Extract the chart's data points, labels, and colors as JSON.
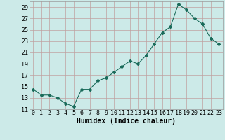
{
  "x": [
    0,
    1,
    2,
    3,
    4,
    5,
    6,
    7,
    8,
    9,
    10,
    11,
    12,
    13,
    14,
    15,
    16,
    17,
    18,
    19,
    20,
    21,
    22,
    23
  ],
  "y": [
    14.5,
    13.5,
    13.5,
    13.0,
    12.0,
    11.5,
    14.5,
    14.5,
    16.0,
    16.5,
    17.5,
    18.5,
    19.5,
    19.0,
    20.5,
    22.5,
    24.5,
    25.5,
    29.5,
    28.5,
    27.0,
    26.0,
    23.5,
    22.5
  ],
  "line_color": "#1a6b5a",
  "marker": "D",
  "marker_size": 2,
  "bg_color": "#cceae8",
  "grid_color": "#c0a0a0",
  "xlabel": "Humidex (Indice chaleur)",
  "ylim": [
    11,
    30
  ],
  "yticks": [
    11,
    13,
    15,
    17,
    19,
    21,
    23,
    25,
    27,
    29
  ],
  "xtick_labels": [
    "0",
    "1",
    "2",
    "3",
    "4",
    "5",
    "6",
    "7",
    "8",
    "9",
    "10",
    "11",
    "12",
    "13",
    "14",
    "15",
    "16",
    "17",
    "18",
    "19",
    "20",
    "21",
    "22",
    "23"
  ],
  "xlabel_fontsize": 7,
  "tick_fontsize": 6
}
